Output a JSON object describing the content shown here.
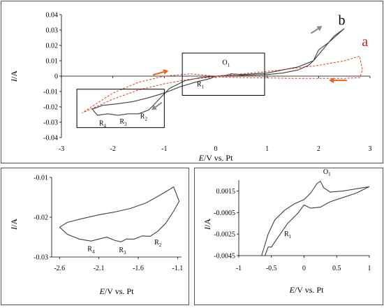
{
  "chart_data": [
    {
      "type": "line",
      "xlabel_italic": "E",
      "xlabel_rest": "/V vs. Pt",
      "ylabel_italic": "I",
      "ylabel_rest": "/A",
      "xlim": [
        -3,
        3
      ],
      "ylim": [
        -0.04,
        0.04
      ],
      "xticks": [
        "-3",
        "-2",
        "-1",
        "0",
        "1",
        "2",
        "3"
      ],
      "yticks": [
        "0.04",
        "0.03",
        "0.02",
        "0.01",
        "0",
        "-0.01",
        "-0.02",
        "-0.03",
        "-0.04"
      ],
      "grid": false,
      "series": [
        {
          "name": "b",
          "color": "#404040",
          "style": "solid",
          "x": [
            0.0,
            0.5,
            1.0,
            1.3,
            1.6,
            1.8,
            1.9,
            2.0,
            2.2,
            2.4,
            2.5,
            2.3,
            2.1,
            1.9,
            1.6,
            1.3,
            1.0,
            0.5,
            0.3,
            0.2,
            0.0,
            -0.3,
            -0.6,
            -0.9,
            -1.1,
            -1.3,
            -1.5,
            -1.7,
            -1.9,
            -2.1,
            -2.3,
            -2.4,
            -2.2,
            -1.9,
            -1.6,
            -1.3,
            -1.0,
            -0.7,
            -0.4,
            -0.1,
            0.0
          ],
          "y": [
            0.0,
            0.0005,
            0.001,
            0.002,
            0.004,
            0.007,
            0.01,
            0.017,
            0.022,
            0.028,
            0.031,
            0.026,
            0.018,
            0.01,
            0.006,
            0.004,
            0.002,
            0.001,
            0.0015,
            0.0005,
            0.0,
            -0.001,
            -0.003,
            -0.008,
            -0.015,
            -0.022,
            -0.0245,
            -0.0245,
            -0.0255,
            -0.0245,
            -0.0255,
            -0.0215,
            -0.019,
            -0.018,
            -0.0165,
            -0.014,
            -0.011,
            -0.007,
            -0.004,
            -0.0015,
            0.0
          ]
        },
        {
          "name": "a",
          "color": "#e53b2a",
          "style": "dashed",
          "x": [
            0.0,
            0.5,
            1.0,
            1.5,
            2.0,
            2.5,
            2.8,
            2.85,
            2.8,
            2.5,
            2.0,
            1.5,
            1.0,
            0.5,
            0.0,
            -0.5,
            -1.0,
            -1.5,
            -2.0,
            -2.6,
            -2.0,
            -1.5,
            -1.0,
            -0.5,
            0.0
          ],
          "y": [
            0.0,
            0.0015,
            0.003,
            0.005,
            0.007,
            0.01,
            0.013,
            0.004,
            -0.001,
            -0.0015,
            -0.0015,
            -0.0015,
            -0.0012,
            -0.001,
            -0.0005,
            -0.002,
            -0.005,
            -0.009,
            -0.015,
            -0.024,
            -0.011,
            -0.004,
            0.0,
            0.0015,
            0.0
          ]
        }
      ],
      "annotations": [
        {
          "text": "b",
          "x": 2.45,
          "y": 0.0335,
          "color": "#000000",
          "size": "large"
        },
        {
          "text": "a",
          "x": 2.9,
          "y": 0.0195,
          "color": "#d41f1f",
          "size": "large"
        },
        {
          "text": "O1",
          "x": 0.2,
          "y": 0.0075,
          "color": "#000000",
          "size": "small"
        },
        {
          "text": "R1",
          "x": -0.3,
          "y": -0.0065,
          "color": "#000000",
          "size": "small"
        },
        {
          "text": "R2",
          "x": -1.4,
          "y": -0.0275,
          "color": "#000000",
          "size": "small"
        },
        {
          "text": "R3",
          "x": -1.8,
          "y": -0.031,
          "color": "#000000",
          "size": "small"
        },
        {
          "text": "R4",
          "x": -2.2,
          "y": -0.032,
          "color": "#000000",
          "size": "small"
        }
      ],
      "boxes": [
        {
          "x": [
            -2.7,
            -1.0
          ],
          "y": [
            -0.0335,
            -0.0085
          ]
        },
        {
          "x": [
            -0.65,
            0.95
          ],
          "y": [
            -0.0125,
            0.015
          ]
        }
      ],
      "arrows": [
        {
          "x": 1.85,
          "y": 0.0278,
          "dx": 0.22,
          "dy": 0.0048,
          "color": "#888888"
        },
        {
          "x": -1.05,
          "y": -0.0172,
          "dx": -0.2,
          "dy": -0.0048,
          "color": "#888888"
        },
        {
          "x": -1.22,
          "y": 0.0008,
          "dx": 0.3,
          "dy": 0.0028,
          "color": "#e8651a"
        },
        {
          "x": 2.55,
          "y": -0.0028,
          "dx": -0.35,
          "dy": 0.0,
          "color": "#e8651a"
        }
      ]
    },
    {
      "type": "line",
      "xlabel_italic": "E",
      "xlabel_rest": "/V vs. Pt",
      "ylabel_italic": "I",
      "ylabel_rest": "/A",
      "xlim": [
        -2.7,
        -1.05
      ],
      "ylim": [
        -0.03,
        -0.01
      ],
      "xticks_vals": [
        -2.6,
        -2.1,
        -1.6,
        -1.1
      ],
      "xticks": [
        "-2.6",
        "-2.1",
        "-1.6",
        "-1.1"
      ],
      "yticks_vals": [
        -0.01,
        -0.02,
        -0.03
      ],
      "yticks": [
        "-0.01",
        "-0.02",
        "-0.03"
      ],
      "grid": false,
      "series": [
        {
          "name": "",
          "color": "#404040",
          "style": "solid",
          "x": [
            -2.6,
            -2.5,
            -2.35,
            -2.2,
            -2.1,
            -2.0,
            -1.9,
            -1.82,
            -1.75,
            -1.65,
            -1.55,
            -1.45,
            -1.35,
            -1.25,
            -1.15,
            -1.08,
            -1.15,
            -1.3,
            -1.5,
            -1.7,
            -1.9,
            -2.1,
            -2.3,
            -2.5,
            -2.6
          ],
          "y": [
            -0.0225,
            -0.0243,
            -0.0255,
            -0.026,
            -0.0255,
            -0.025,
            -0.0258,
            -0.0262,
            -0.0255,
            -0.0255,
            -0.0247,
            -0.0248,
            -0.0235,
            -0.0215,
            -0.0185,
            -0.016,
            -0.0124,
            -0.0142,
            -0.0164,
            -0.0178,
            -0.0187,
            -0.0194,
            -0.0203,
            -0.0213,
            -0.0225
          ]
        }
      ],
      "annotations": [
        {
          "text": "R4",
          "x": -2.2,
          "y": -0.0285
        },
        {
          "text": "R3",
          "x": -1.8,
          "y": -0.0288
        },
        {
          "text": "R2",
          "x": -1.35,
          "y": -0.0268
        }
      ]
    },
    {
      "type": "line",
      "xlabel_italic": "E",
      "xlabel_rest": "/V vs. Pt",
      "ylabel_italic": "I",
      "ylabel_rest": "/A",
      "xlim": [
        -1,
        1
      ],
      "ylim": [
        -0.0045,
        0.0025
      ],
      "xticks_vals": [
        -1,
        -0.5,
        0,
        0.5,
        1
      ],
      "xticks": [
        "-1",
        "-0.5",
        "0",
        "0.5",
        "1"
      ],
      "yticks_vals": [
        0.0015,
        -0.0005,
        -0.0025,
        -0.0045
      ],
      "yticks": [
        "0.0015",
        "-0.0005",
        "-0.0025",
        "-0.0045"
      ],
      "grid": false,
      "series": [
        {
          "name": "",
          "color": "#404040",
          "style": "solid",
          "x": [
            -0.65,
            -0.55,
            -0.45,
            -0.3,
            -0.15,
            0.0,
            0.1,
            0.2,
            0.25,
            0.3,
            0.4,
            0.6,
            0.8,
            1.0,
            0.8,
            0.6,
            0.4,
            0.25,
            0.1,
            0.0,
            -0.1,
            -0.25,
            -0.4,
            -0.5,
            -0.55,
            -0.6
          ],
          "y": [
            -0.0045,
            -0.0025,
            -0.0012,
            -0.0003,
            0.0003,
            0.0007,
            0.0013,
            0.0022,
            0.0024,
            0.0018,
            0.0014,
            0.0015,
            0.0017,
            0.0019,
            0.0013,
            0.0009,
            0.0005,
            0.0,
            -0.0001,
            0.0002,
            -0.0006,
            -0.0015,
            -0.0028,
            -0.0037,
            -0.0037,
            -0.0045
          ]
        }
      ],
      "annotations": [
        {
          "text": "O1",
          "x": 0.35,
          "y": 0.0031
        },
        {
          "text": "R1",
          "x": -0.25,
          "y": -0.0027
        }
      ]
    }
  ]
}
